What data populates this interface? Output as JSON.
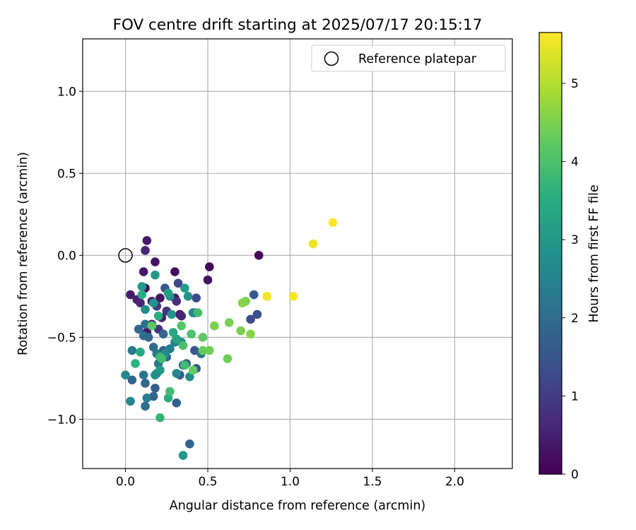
{
  "chart_data": {
    "type": "scatter",
    "title": "FOV centre drift starting at 2025/07/17 20:15:17",
    "xlabel": "Angular distance from reference (arcmin)",
    "ylabel": "Rotation from reference (arcmin)",
    "xlim": [
      -0.26,
      2.35
    ],
    "ylim": [
      -1.3,
      1.32
    ],
    "xticks": [
      "0.0",
      "0.5",
      "1.0",
      "1.5",
      "2.0"
    ],
    "yticks": [
      "1.0",
      "0.5",
      "0.0",
      "−0.5",
      "−1.0"
    ],
    "grid": true,
    "legend": {
      "position": "top-right",
      "entries": [
        "Reference platepar"
      ]
    },
    "reference_point": {
      "x": 0.0,
      "y": 0.0,
      "marker": "open-circle"
    },
    "colorbar": {
      "label": "Hours from first FF file",
      "range": [
        0,
        5.65
      ],
      "ticks": [
        "0",
        "1",
        "2",
        "3",
        "4",
        "5"
      ],
      "colormap": "viridis"
    },
    "points": [
      {
        "x": 0.13,
        "y": 0.09,
        "h": 0.4
      },
      {
        "x": 0.12,
        "y": 0.03,
        "h": 0.6
      },
      {
        "x": 0.18,
        "y": -0.04,
        "h": 0.3
      },
      {
        "x": 0.11,
        "y": -0.1,
        "h": 0.4
      },
      {
        "x": 0.3,
        "y": -0.1,
        "h": 0.2
      },
      {
        "x": 0.51,
        "y": -0.07,
        "h": 0.1
      },
      {
        "x": 0.81,
        "y": 0.0,
        "h": 0.1
      },
      {
        "x": 0.5,
        "y": -0.15,
        "h": 0.3
      },
      {
        "x": 0.03,
        "y": -0.24,
        "h": 0.4
      },
      {
        "x": 0.07,
        "y": -0.27,
        "h": 0.5
      },
      {
        "x": 0.09,
        "y": -0.29,
        "h": 0.6
      },
      {
        "x": 0.12,
        "y": -0.2,
        "h": 0.2
      },
      {
        "x": 0.16,
        "y": -0.28,
        "h": 0.4
      },
      {
        "x": 0.21,
        "y": -0.26,
        "h": 0.3
      },
      {
        "x": 0.3,
        "y": -0.26,
        "h": 0.3
      },
      {
        "x": 0.31,
        "y": -0.28,
        "h": 0.7
      },
      {
        "x": 0.33,
        "y": -0.36,
        "h": 0.4
      },
      {
        "x": 0.34,
        "y": -0.37,
        "h": 0.6
      },
      {
        "x": 0.13,
        "y": -0.47,
        "h": 0.3
      },
      {
        "x": 0.16,
        "y": -0.42,
        "h": 0.5
      },
      {
        "x": 0.2,
        "y": -0.45,
        "h": 0.9
      },
      {
        "x": 0.25,
        "y": -0.34,
        "h": 0.8
      },
      {
        "x": 0.22,
        "y": -0.38,
        "h": 0.5
      },
      {
        "x": 0.19,
        "y": -0.31,
        "h": 0.9
      },
      {
        "x": 0.32,
        "y": -0.17,
        "h": 1.2
      },
      {
        "x": 0.24,
        "y": -0.2,
        "h": 1.5
      },
      {
        "x": 0.43,
        "y": -0.26,
        "h": 1.3
      },
      {
        "x": 0.78,
        "y": -0.24,
        "h": 1.6
      },
      {
        "x": 0.8,
        "y": -0.36,
        "h": 1.4
      },
      {
        "x": 0.76,
        "y": -0.39,
        "h": 1.3
      },
      {
        "x": 0.42,
        "y": -0.35,
        "h": 1.1
      },
      {
        "x": 0.08,
        "y": -0.45,
        "h": 1.8
      },
      {
        "x": 0.12,
        "y": -0.42,
        "h": 2.1
      },
      {
        "x": 0.11,
        "y": -0.49,
        "h": 2.0
      },
      {
        "x": 0.14,
        "y": -0.5,
        "h": 1.9
      },
      {
        "x": 0.17,
        "y": -0.56,
        "h": 2.0
      },
      {
        "x": 0.19,
        "y": -0.6,
        "h": 2.3
      },
      {
        "x": 0.2,
        "y": -0.66,
        "h": 2.2
      },
      {
        "x": 0.23,
        "y": -0.58,
        "h": 1.8
      },
      {
        "x": 0.25,
        "y": -0.62,
        "h": 1.9
      },
      {
        "x": 0.27,
        "y": -0.57,
        "h": 2.4
      },
      {
        "x": 0.23,
        "y": -0.48,
        "h": 1.8
      },
      {
        "x": 0.3,
        "y": -0.53,
        "h": 2.5
      },
      {
        "x": 0.04,
        "y": -0.58,
        "h": 2.3
      },
      {
        "x": 0.04,
        "y": -0.76,
        "h": 1.8
      },
      {
        "x": 0.11,
        "y": -0.73,
        "h": 2.2
      },
      {
        "x": 0.12,
        "y": -0.78,
        "h": 1.9
      },
      {
        "x": 0.18,
        "y": -0.81,
        "h": 1.7
      },
      {
        "x": 0.17,
        "y": -0.86,
        "h": 1.8
      },
      {
        "x": 0.13,
        "y": -0.87,
        "h": 2.4
      },
      {
        "x": 0.12,
        "y": -0.92,
        "h": 2.0
      },
      {
        "x": 0.03,
        "y": -0.89,
        "h": 2.6
      },
      {
        "x": 0.19,
        "y": -0.72,
        "h": 2.5
      },
      {
        "x": 0.21,
        "y": -0.7,
        "h": 3.0
      },
      {
        "x": 0.24,
        "y": -0.6,
        "h": 2.7
      },
      {
        "x": 0.31,
        "y": -0.72,
        "h": 2.6
      },
      {
        "x": 0.33,
        "y": -0.73,
        "h": 1.6
      },
      {
        "x": 0.31,
        "y": -0.9,
        "h": 1.7
      },
      {
        "x": 0.35,
        "y": -0.67,
        "h": 2.0
      },
      {
        "x": 0.37,
        "y": -0.66,
        "h": 1.7
      },
      {
        "x": 0.39,
        "y": -0.74,
        "h": 2.8
      },
      {
        "x": 0.43,
        "y": -0.69,
        "h": 1.6
      },
      {
        "x": 0.46,
        "y": -0.6,
        "h": 2.2
      },
      {
        "x": 0.42,
        "y": -0.58,
        "h": 1.5
      },
      {
        "x": 0.0,
        "y": -0.73,
        "h": 2.6
      },
      {
        "x": 0.09,
        "y": -0.59,
        "h": 3.4
      },
      {
        "x": 0.06,
        "y": -0.66,
        "h": 3.6
      },
      {
        "x": 0.1,
        "y": -0.19,
        "h": 3.0
      },
      {
        "x": 0.1,
        "y": -0.24,
        "h": 3.5
      },
      {
        "x": 0.12,
        "y": -0.33,
        "h": 2.7
      },
      {
        "x": 0.17,
        "y": -0.29,
        "h": 2.9
      },
      {
        "x": 0.18,
        "y": -0.12,
        "h": 3.0
      },
      {
        "x": 0.2,
        "y": -0.37,
        "h": 3.5
      },
      {
        "x": 0.26,
        "y": -0.23,
        "h": 3.2
      },
      {
        "x": 0.27,
        "y": -0.25,
        "h": 2.8
      },
      {
        "x": 0.28,
        "y": -0.36,
        "h": 2.9
      },
      {
        "x": 0.36,
        "y": -0.2,
        "h": 3.1
      },
      {
        "x": 0.38,
        "y": -0.25,
        "h": 2.9
      },
      {
        "x": 0.41,
        "y": -0.35,
        "h": 2.6
      },
      {
        "x": 0.29,
        "y": -0.47,
        "h": 3.4
      },
      {
        "x": 0.31,
        "y": -0.51,
        "h": 3.3
      },
      {
        "x": 0.34,
        "y": -0.53,
        "h": 2.6
      },
      {
        "x": 0.21,
        "y": -0.62,
        "h": 3.8
      },
      {
        "x": 0.22,
        "y": -0.63,
        "h": 3.9
      },
      {
        "x": 0.18,
        "y": -0.73,
        "h": 2.8
      },
      {
        "x": 0.26,
        "y": -0.87,
        "h": 3.5
      },
      {
        "x": 0.27,
        "y": -0.83,
        "h": 3.9
      },
      {
        "x": 0.21,
        "y": -0.99,
        "h": 3.7
      },
      {
        "x": 0.35,
        "y": -1.22,
        "h": 3.0
      },
      {
        "x": 0.39,
        "y": -1.15,
        "h": 1.8
      },
      {
        "x": 0.16,
        "y": -0.43,
        "h": 4.2
      },
      {
        "x": 0.34,
        "y": -0.43,
        "h": 4.1
      },
      {
        "x": 0.35,
        "y": -0.55,
        "h": 4.0
      },
      {
        "x": 0.4,
        "y": -0.48,
        "h": 4.0
      },
      {
        "x": 0.44,
        "y": -0.35,
        "h": 3.9
      },
      {
        "x": 0.41,
        "y": -0.7,
        "h": 4.3
      },
      {
        "x": 0.36,
        "y": -0.67,
        "h": 3.9
      },
      {
        "x": 0.47,
        "y": -0.5,
        "h": 4.2
      },
      {
        "x": 0.47,
        "y": -0.58,
        "h": 4.3
      },
      {
        "x": 0.51,
        "y": -0.58,
        "h": 4.4
      },
      {
        "x": 0.54,
        "y": -0.43,
        "h": 4.5
      },
      {
        "x": 0.62,
        "y": -0.63,
        "h": 4.4
      },
      {
        "x": 0.63,
        "y": -0.41,
        "h": 4.5
      },
      {
        "x": 0.7,
        "y": -0.46,
        "h": 4.5
      },
      {
        "x": 0.76,
        "y": -0.48,
        "h": 4.6
      },
      {
        "x": 0.71,
        "y": -0.29,
        "h": 4.6
      },
      {
        "x": 0.73,
        "y": -0.28,
        "h": 4.5
      },
      {
        "x": 0.86,
        "y": -0.25,
        "h": 5.6
      },
      {
        "x": 1.02,
        "y": -0.25,
        "h": 5.6
      },
      {
        "x": 1.14,
        "y": 0.07,
        "h": 5.5
      },
      {
        "x": 1.26,
        "y": 0.2,
        "h": 5.6
      }
    ]
  }
}
